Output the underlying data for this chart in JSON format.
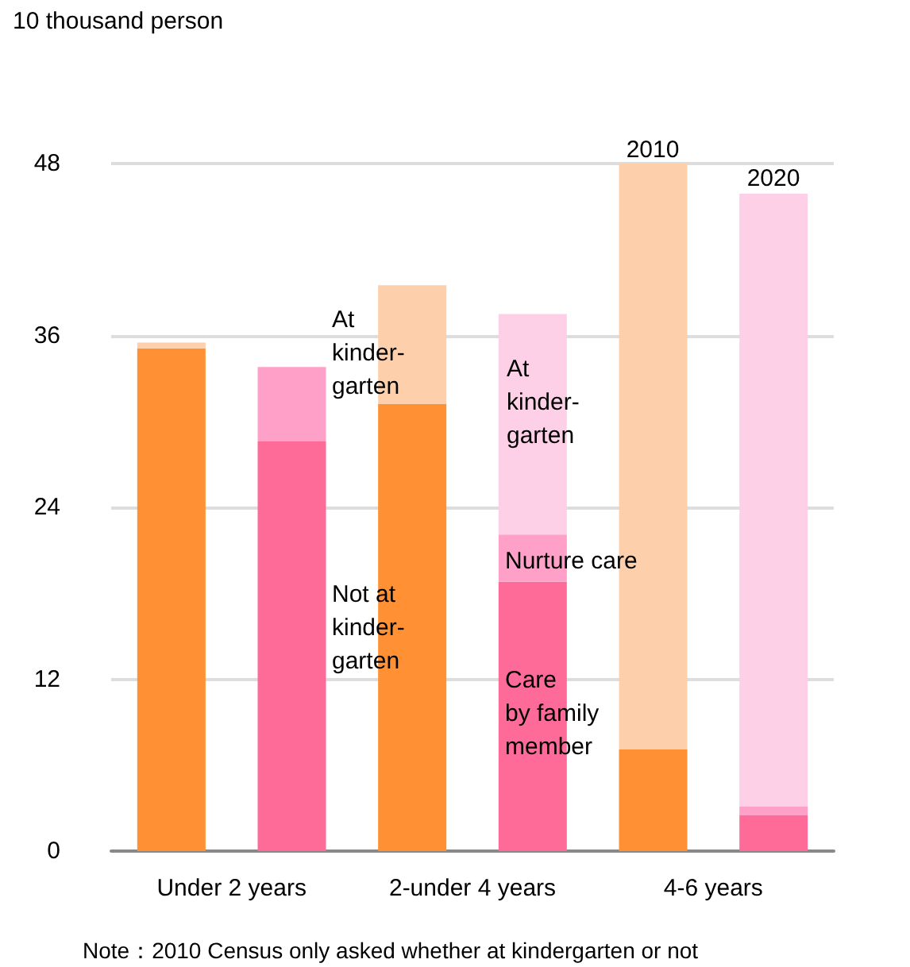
{
  "chart_data": {
    "type": "bar",
    "stacked": true,
    "ylabel": "10 thousand person",
    "categories": [
      "Under 2 years",
      null,
      "2-under 4 years",
      null,
      "4-6 years",
      null
    ],
    "series": [
      {
        "color": "#ff9033",
        "values": [
          35.1,
          null,
          31.2,
          null,
          7.1,
          null
        ]
      },
      {
        "color": "#fdd0ab",
        "values": [
          0.4,
          null,
          8.3,
          null,
          40.9,
          null
        ]
      },
      {
        "color": "#ff6b98",
        "values": [
          null,
          28.6,
          null,
          18.8,
          null,
          2.5
        ]
      },
      {
        "color": "#ffa0c8",
        "values": [
          null,
          5.2,
          null,
          3.3,
          null,
          0.6
        ]
      },
      {
        "color": "#fdd0e8",
        "values": [
          null,
          0,
          null,
          15.4,
          null,
          42.8
        ]
      }
    ],
    "ylim": [
      0,
      48
    ],
    "yticks": [
      0,
      12,
      24,
      36,
      48
    ],
    "grid": "y",
    "annotations": [
      "At\nkinder-\ngarten",
      "Not at\nkinder-\ngarten",
      "At\nkinder-\ngarten",
      "Nurture care",
      "Care\nby family\nmember",
      "2010",
      "2020",
      "Note：2010 Census only asked whether at kindergarten or not"
    ]
  }
}
